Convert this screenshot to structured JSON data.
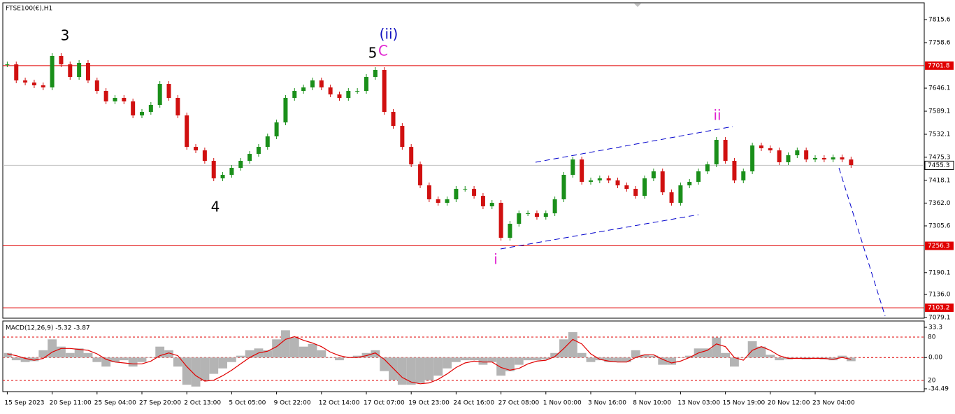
{
  "chart_data": {
    "type": "candlestick",
    "title": "FTSE100(€),H1",
    "categories": [
      "15 Sep 2023",
      null,
      null,
      null,
      null,
      "20 Sep 11:00",
      null,
      null,
      null,
      null,
      "25 Sep 04:00",
      null,
      null,
      null,
      null,
      "27 Sep 20:00",
      null,
      null,
      null,
      null,
      "2 Oct 13:00",
      null,
      null,
      null,
      null,
      "5 Oct 05:00",
      null,
      null,
      null,
      null,
      "9 Oct 22:00",
      null,
      null,
      null,
      null,
      "12 Oct 14:00",
      null,
      null,
      null,
      null,
      "17 Oct 07:00",
      null,
      null,
      null,
      null,
      "19 Oct 23:00",
      null,
      null,
      null,
      null,
      "24 Oct 16:00",
      null,
      null,
      null,
      null,
      "27 Oct 08:00",
      null,
      null,
      null,
      null,
      "1 Nov 00:00",
      null,
      null,
      null,
      null,
      "3 Nov 16:00",
      null,
      null,
      null,
      null,
      "8 Nov 10:00",
      null,
      null,
      null,
      null,
      "13 Nov 03:00",
      null,
      null,
      null,
      null,
      "15 Nov 19:00",
      null,
      null,
      null,
      null,
      "20 Nov 12:00",
      null,
      null,
      null,
      null,
      "23 Nov 04:00",
      null,
      null,
      null,
      null
    ],
    "close": [
      7704.9,
      7665.2,
      7660.0,
      7653.1,
      7647.9,
      7725.7,
      7704.9,
      7673.8,
      7708.4,
      7665.2,
      7639.2,
      7613.3,
      7622.0,
      7613.3,
      7578.7,
      7587.4,
      7604.7,
      7656.5,
      7622.0,
      7578.7,
      7500.9,
      7492.3,
      7466.4,
      7423.1,
      7431.8,
      7449.1,
      7466.4,
      7483.6,
      7500.9,
      7526.9,
      7561.4,
      7622.0,
      7639.2,
      7647.9,
      7665.2,
      7647.9,
      7630.6,
      7622.0,
      7639.2,
      7639.2,
      7673.8,
      7691.1,
      7587.4,
      7552.8,
      7500.9,
      7457.7,
      7405.8,
      7371.3,
      7362.6,
      7371.3,
      7397.2,
      7397.2,
      7379.9,
      7354.0,
      7362.6,
      7276.2,
      7310.8,
      7336.7,
      7336.7,
      7328.0,
      7336.7,
      7371.3,
      7431.8,
      7469.8,
      7414.5,
      7418.0,
      7423.1,
      7418.0,
      7405.8,
      7397.2,
      7379.9,
      7423.1,
      7440.4,
      7388.6,
      7362.6,
      7405.8,
      7414.5,
      7440.4,
      7457.7,
      7518.2,
      7466.4,
      7418.0,
      7440.4,
      7504.4,
      7497.5,
      7492.3,
      7462.9,
      7480.2,
      7492.3,
      7469.8,
      7473.3,
      7469.8,
      7475.0,
      7469.8,
      7456.0
    ],
    "up_color": "#1a8f1a",
    "down_color": "#d01010",
    "ylim": [
      7077.4,
      7857.1
    ],
    "yticks": [
      7815.6,
      7758.6,
      7646.1,
      7589.1,
      7532.1,
      7475.3,
      7418.1,
      {
        "value": 7362,
        "label": "7362.0"
      },
      7305.6,
      7190.1,
      {
        "value": 7136,
        "label": "7136.0"
      },
      7079.1
    ],
    "levels": [
      {
        "value": 7701.8,
        "color": "#e00000"
      },
      {
        "value": 7256.3,
        "color": "#e00000"
      },
      {
        "value": 7103.2,
        "color": "#e00000"
      }
    ],
    "current_price": 7455.3,
    "annotations": [
      "3",
      "4",
      "5",
      "C",
      "(ii)",
      "i",
      "ii"
    ],
    "macd": {
      "title": "MACD(12,26,9) -5.32 -3.87",
      "hist": [
        5,
        -3,
        -5,
        -4,
        8,
        20,
        12,
        5,
        10,
        5,
        -5,
        -10,
        -5,
        -3,
        -10,
        -5,
        0,
        12,
        8,
        -10,
        -30,
        -32,
        -25,
        -18,
        -12,
        -5,
        2,
        8,
        10,
        8,
        20,
        30,
        22,
        12,
        15,
        8,
        0,
        -3,
        0,
        2,
        5,
        8,
        -15,
        -25,
        -30,
        -30,
        -28,
        -25,
        -20,
        -12,
        -5,
        -3,
        -3,
        -8,
        -5,
        -20,
        -15,
        -8,
        -3,
        -3,
        -2,
        5,
        20,
        28,
        5,
        -5,
        -3,
        -5,
        -5,
        -5,
        8,
        3,
        2,
        -8,
        -8,
        0,
        2,
        10,
        10,
        22,
        5,
        -10,
        0,
        18,
        12,
        3,
        -3,
        -2,
        0,
        -2,
        0,
        -2,
        -3,
        2,
        -4
      ],
      "signal": [
        4,
        2,
        -1,
        -3,
        -1,
        6,
        10,
        10,
        9,
        8,
        4,
        -2,
        -5,
        -6,
        -7,
        -7,
        -4,
        2,
        5,
        2,
        -10,
        -20,
        -26,
        -25,
        -20,
        -14,
        -7,
        0,
        5,
        7,
        12,
        20,
        23,
        19,
        16,
        12,
        6,
        2,
        0,
        0,
        2,
        5,
        -2,
        -12,
        -22,
        -27,
        -29,
        -28,
        -24,
        -18,
        -11,
        -6,
        -4,
        -5,
        -5,
        -11,
        -14,
        -12,
        -7,
        -4,
        -3,
        1,
        10,
        20,
        15,
        4,
        -2,
        -4,
        -5,
        -5,
        0,
        3,
        3,
        -2,
        -6,
        -4,
        0,
        5,
        8,
        15,
        12,
        0,
        -3,
        8,
        12,
        8,
        2,
        -1,
        -1,
        -1,
        -1,
        -1,
        -2,
        0,
        -2
      ],
      "hist_color": "#b4b4b4",
      "signal_color": "#e00000",
      "ylim": [
        -37.6,
        39.5
      ],
      "yticks": [
        33.3,
        {
          "value": 0,
          "label": "0.00"
        },
        -34.49
      ],
      "level_labels": [
        "80",
        "20"
      ]
    }
  }
}
